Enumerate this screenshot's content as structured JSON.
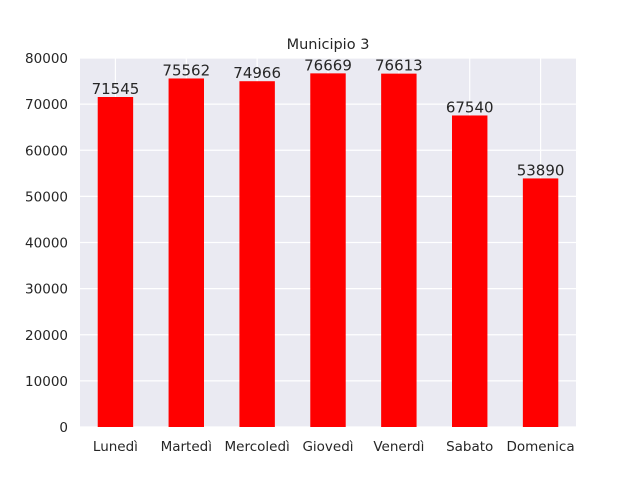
{
  "chart_data": {
    "type": "bar",
    "title": "Municipio 3",
    "xlabel": "",
    "ylabel": "",
    "categories": [
      "Lunedì",
      "Martedì",
      "Mercoledì",
      "Giovedì",
      "Venerdì",
      "Sabato",
      "Domenica"
    ],
    "values": [
      71545,
      75562,
      74966,
      76669,
      76613,
      67540,
      53890
    ],
    "ylim": [
      0,
      80000
    ],
    "yticks": [
      0,
      10000,
      20000,
      30000,
      40000,
      50000,
      60000,
      70000,
      80000
    ],
    "grid": true,
    "bar_color": "#ff0000",
    "plot_background": "#eaeaf2",
    "grid_color": "#ffffff"
  }
}
